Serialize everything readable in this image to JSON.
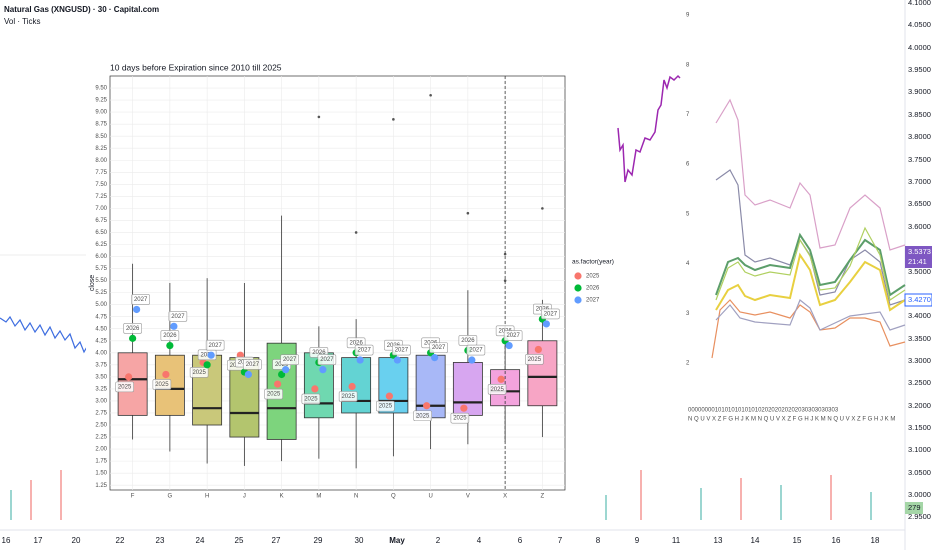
{
  "header": {
    "symbol": "Natural Gas (XNGUSD) · 30 · Capital.com",
    "indicator": "Vol · Ticks"
  },
  "time_axis": [
    "16",
    "17",
    "20",
    "22",
    "23",
    "24",
    "25",
    "27",
    "29",
    "30",
    "May",
    "2",
    "4",
    "6",
    "7",
    "8",
    "9",
    "11",
    "13",
    "14",
    "15",
    "16",
    "18"
  ],
  "price_axis": [
    "4.1000",
    "4.0500",
    "4.0000",
    "3.9500",
    "3.9000",
    "3.8500",
    "3.8000",
    "3.7500",
    "3.7000",
    "3.6500",
    "3.6000",
    "3.5000",
    "3.4000",
    "3.3500",
    "3.3000",
    "3.2500",
    "3.2000",
    "3.1500",
    "3.1000",
    "3.0500",
    "3.0000",
    "2.9500"
  ],
  "price_tags": [
    "3.5373",
    "21:41",
    "3.4270"
  ],
  "volume_tag": "279",
  "inset": {
    "y_labels": [
      "9",
      "8",
      "7",
      "6",
      "5",
      "4",
      "3",
      "2"
    ],
    "x_digits": "000000001010101010101020202020202030303030303",
    "x_letters": "N Q U V X Z F G H J K M N Q U V X Z F G H J K M N Q U V X Z F G H J K M"
  },
  "chart_data": {
    "type": "boxplot",
    "title": "10 days before Expiration since 2010 till 2025",
    "y_label": "close",
    "legend_title": "as.factor(year)",
    "categories": [
      "F",
      "G",
      "H",
      "J",
      "K",
      "M",
      "N",
      "Q",
      "U",
      "V",
      "X",
      "Z"
    ],
    "colors": [
      "#f6a5a5",
      "#e8c278",
      "#c9c87a",
      "#b3c56e",
      "#7dd47d",
      "#6fd8b0",
      "#63d3d3",
      "#69d0ef",
      "#a8b8f7",
      "#d7a6f0",
      "#f3a3dd",
      "#f7a5c5"
    ],
    "boxes": [
      {
        "min": 2.2,
        "q1": 2.7,
        "median": 3.45,
        "q3": 4.0,
        "max": 5.85,
        "outliers": []
      },
      {
        "min": 1.95,
        "q1": 2.7,
        "median": 3.25,
        "q3": 3.95,
        "max": 5.45,
        "outliers": []
      },
      {
        "min": 1.7,
        "q1": 2.5,
        "median": 2.85,
        "q3": 3.95,
        "max": 5.55,
        "outliers": []
      },
      {
        "min": 1.65,
        "q1": 2.25,
        "median": 2.75,
        "q3": 3.9,
        "max": 5.45,
        "outliers": []
      },
      {
        "min": 1.75,
        "q1": 2.2,
        "median": 2.85,
        "q3": 4.2,
        "max": 6.85,
        "outliers": []
      },
      {
        "min": 1.8,
        "q1": 2.65,
        "median": 2.95,
        "q3": 4.0,
        "max": 4.55,
        "outliers": [
          8.9
        ]
      },
      {
        "min": 1.6,
        "q1": 2.75,
        "median": 3.0,
        "q3": 3.9,
        "max": 4.7,
        "outliers": [
          6.5
        ]
      },
      {
        "min": 1.85,
        "q1": 2.75,
        "median": 3.0,
        "q3": 3.9,
        "max": 4.2,
        "outliers": [
          8.85
        ]
      },
      {
        "min": 2.0,
        "q1": 2.65,
        "median": 2.9,
        "q3": 3.95,
        "max": 4.1,
        "outliers": [
          9.35
        ]
      },
      {
        "min": 2.1,
        "q1": 2.7,
        "median": 2.97,
        "q3": 3.8,
        "max": 5.3,
        "outliers": [
          6.9
        ]
      },
      {
        "min": 2.15,
        "q1": 2.9,
        "median": 3.2,
        "q3": 3.65,
        "max": 4.55,
        "outliers": [
          6.05,
          5.5
        ]
      },
      {
        "min": 2.25,
        "q1": 2.9,
        "median": 3.5,
        "q3": 4.25,
        "max": 5.1,
        "outliers": [
          7.0
        ]
      }
    ],
    "series": [
      {
        "name": "2025",
        "color": "#f8766d",
        "values": [
          3.5,
          3.55,
          3.8,
          3.95,
          3.35,
          3.25,
          3.3,
          3.1,
          2.9,
          2.85,
          3.45,
          4.07
        ]
      },
      {
        "name": "2026",
        "color": "#00ba38",
        "values": [
          4.3,
          4.15,
          3.75,
          3.6,
          3.55,
          3.8,
          4.0,
          3.95,
          4.0,
          4.05,
          4.25,
          4.7
        ]
      },
      {
        "name": "2027",
        "color": "#619cff",
        "values": [
          4.9,
          4.55,
          3.95,
          3.55,
          3.65,
          3.65,
          3.85,
          3.85,
          3.9,
          3.85,
          4.15,
          4.6
        ]
      }
    ],
    "dashed_category": "X",
    "ylim": [
      1.15,
      9.75
    ],
    "yticks": [
      {
        "value": 1.25,
        "label": "1.25"
      },
      {
        "value": 1.5,
        "label": "1.50"
      },
      1.75,
      {
        "value": 2,
        "label": "2.00"
      },
      2.25,
      {
        "value": 2.5,
        "label": "2.50"
      },
      2.75,
      {
        "value": 3,
        "label": "3.00"
      },
      3.25,
      {
        "value": 3.5,
        "label": "3.50"
      },
      3.75,
      {
        "value": 4,
        "label": "4.00"
      },
      4.25,
      {
        "value": 4.5,
        "label": "4.50"
      },
      4.75,
      {
        "value": 5,
        "label": "5.00"
      },
      5.25,
      {
        "value": 5.5,
        "label": "5.50"
      },
      5.75,
      {
        "value": 6,
        "label": "6.00"
      },
      6.25,
      {
        "value": 6.5,
        "label": "6.50"
      },
      6.75,
      {
        "value": 7,
        "label": "7.00"
      },
      7.25,
      {
        "value": 7.5,
        "label": "7.50"
      },
      7.75,
      {
        "value": 8,
        "label": "8.00"
      },
      8.25,
      {
        "value": 8.5,
        "label": "8.50"
      },
      8.75,
      {
        "value": 9,
        "label": "9.00"
      },
      9.25,
      {
        "value": 9.5,
        "label": "9.50"
      }
    ],
    "grid": true
  }
}
